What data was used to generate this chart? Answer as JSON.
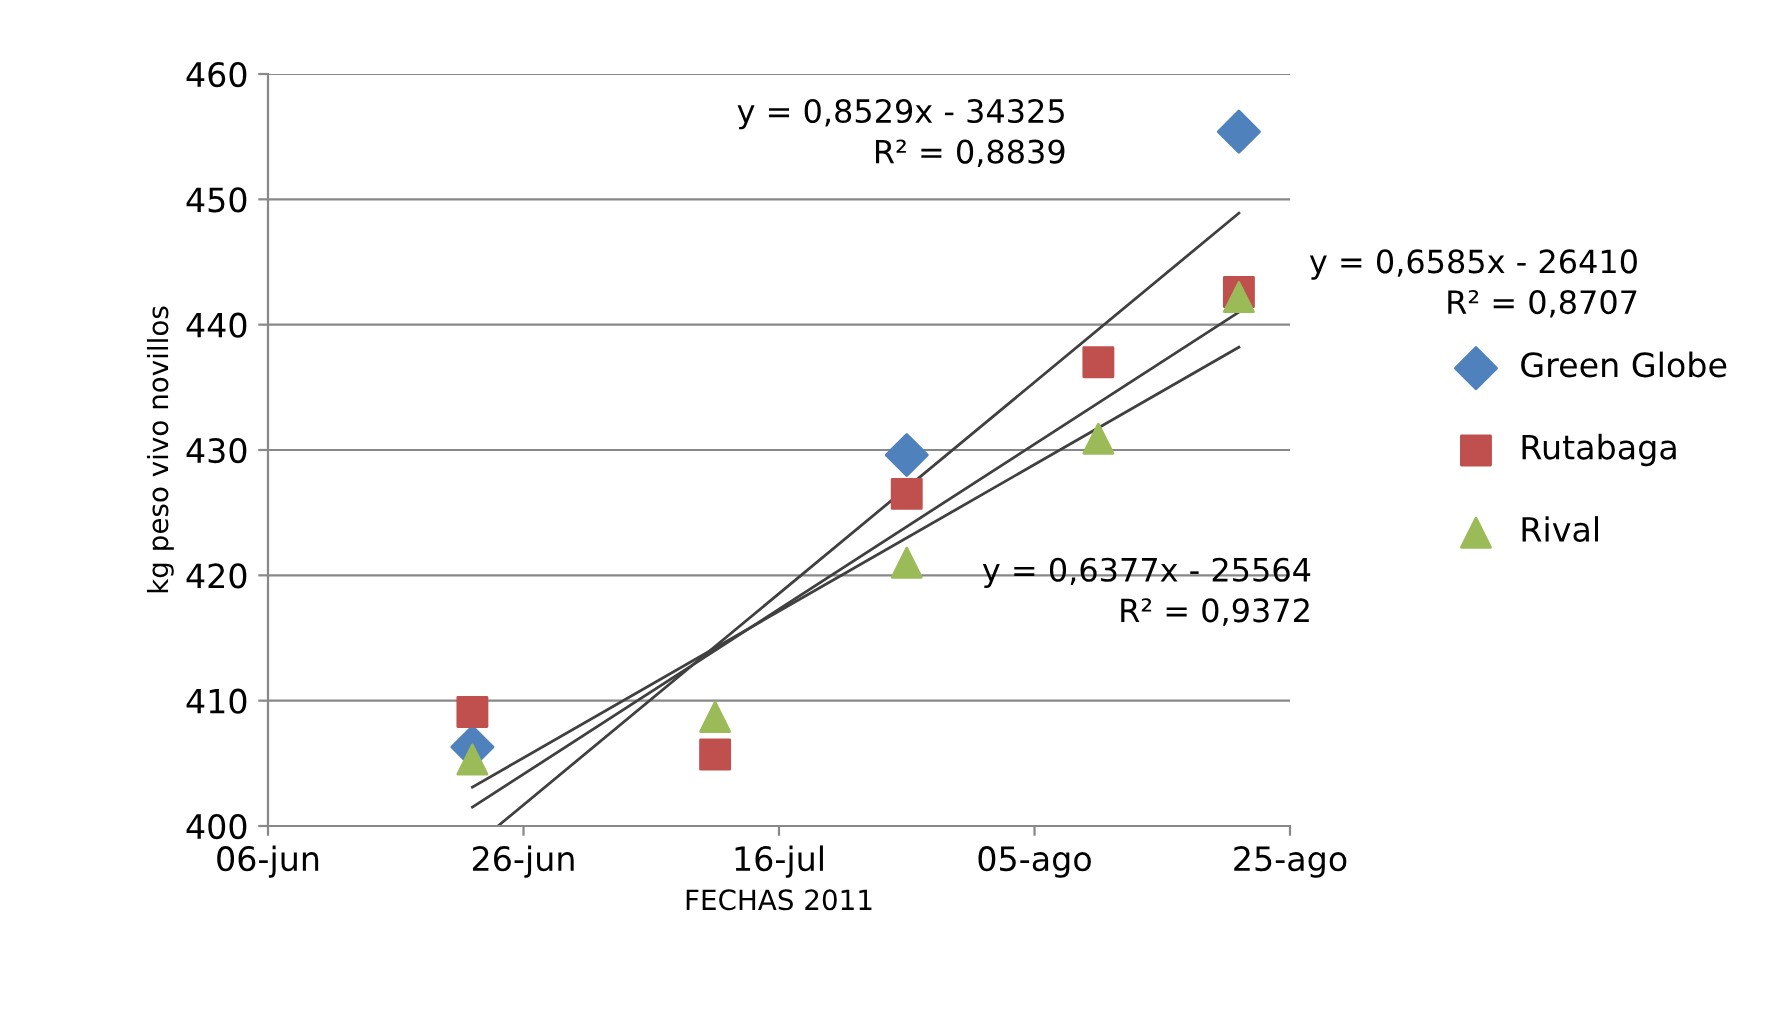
{
  "chart_data": {
    "type": "scatter",
    "xlabel": "FECHAS 2011",
    "ylabel": "kg peso vivo novillos",
    "xlim": [
      "2011-06-06",
      "2011-08-25"
    ],
    "xticks": [
      {
        "value": "2011-06-06",
        "label": "06-jun"
      },
      {
        "value": "2011-06-26",
        "label": "26-jun"
      },
      {
        "value": "2011-07-16",
        "label": "16-jul"
      },
      {
        "value": "2011-08-05",
        "label": "05-ago"
      },
      {
        "value": "2011-08-25",
        "label": "25-ago"
      }
    ],
    "ylim": [
      400,
      460
    ],
    "yticks": [
      400,
      410,
      420,
      430,
      440,
      450,
      460
    ],
    "grid": "y",
    "legend": "right",
    "series": [
      {
        "name": "Green Globe",
        "color": "#4f81bd",
        "marker": "diamond",
        "x": [
          "2011-06-22",
          "2011-07-26",
          "2011-08-21"
        ],
        "values": [
          406.3,
          429.6,
          455.4
        ]
      },
      {
        "name": "Rutabaga",
        "color": "#c0504d",
        "marker": "square",
        "x": [
          "2011-06-22",
          "2011-07-11",
          "2011-07-26",
          "2011-08-10",
          "2011-08-21"
        ],
        "values": [
          409.1,
          405.7,
          426.5,
          437.0,
          442.6
        ]
      },
      {
        "name": "Rival",
        "color": "#9bbb59",
        "marker": "triangle",
        "x": [
          "2011-06-22",
          "2011-07-11",
          "2011-07-26",
          "2011-08-10",
          "2011-08-21"
        ],
        "values": [
          405.3,
          408.7,
          421.0,
          430.9,
          442.2
        ]
      },
      {
        "type": "line",
        "color": "#404040",
        "x": [
          "2011-06-24",
          "2011-08-21"
        ],
        "values": [
          400.0,
          448.9
        ]
      },
      {
        "type": "line",
        "color": "#404040",
        "x": [
          "2011-06-22",
          "2011-08-21"
        ],
        "values": [
          401.5,
          441.0
        ]
      },
      {
        "type": "line",
        "color": "#404040",
        "x": [
          "2011-06-22",
          "2011-08-21"
        ],
        "values": [
          403.1,
          438.2
        ]
      }
    ],
    "annotations": [
      "y = 0,8529x - 34325\nR² = 0,8839",
      "y = 0,6585x - 26410\nR² = 0,8707",
      "y = 0,6377x - 25564\nR² = 0,9372"
    ]
  }
}
